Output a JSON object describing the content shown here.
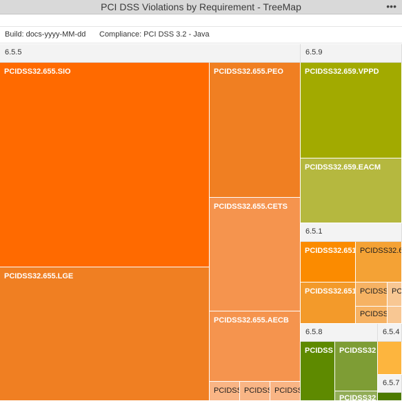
{
  "window": {
    "title": "PCI DSS Violations by Requirement - TreeMap",
    "menu_glyph": "•••"
  },
  "filters": {
    "build": "Build: docs-yyyy-MM-dd",
    "compliance": "Compliance: PCI DSS 3.2 - Java"
  },
  "groups": {
    "g655": "6.5.5",
    "g659": "6.5.9",
    "g651": "6.5.1",
    "g658": "6.5.8",
    "g654": "6.5.4",
    "g657": "6.5.7"
  },
  "tiles": {
    "sio": "PCIDSS32.655.SIO",
    "lge": "PCIDSS32.655.LGE",
    "peo": "PCIDSS32.655.PEO",
    "cets": "PCIDSS32.655.CETS",
    "aecb": "PCIDSS32.655.AECB",
    "s655a": "PCIDSS",
    "s655b": "PCIDSS",
    "s655c": "PCIDSS",
    "vppd": "PCIDSS32.659.VPPD",
    "eacm": "PCIDSS32.659.EACM",
    "t651a": "PCIDSS32.651",
    "t651b": "PCIDSS32.6",
    "t651c": "PCIDSS32.651",
    "t651d": "PCIDSS",
    "t651e": "PCI",
    "t651f": "PCIDSS",
    "t658a": "PCIDSS",
    "t658b": "PCIDSS32",
    "t658c": "PCIDSS32",
    "t657a": "",
    "t654a": ""
  },
  "colors": {
    "orange_deep": "#ff6a00",
    "orange_mid": "#f07f22",
    "orange_light": "#f5944e",
    "olive": "#a2aa00",
    "olive_light": "#b5b83f",
    "amber": "#fb8b00",
    "amber_light": "#f4a235",
    "green_dark": "#5e8a00",
    "green_mid": "#7e9d35",
    "yellow": "#fdb53e"
  }
}
